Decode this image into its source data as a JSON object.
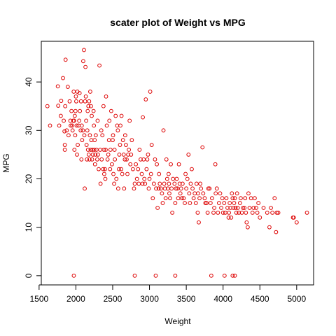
{
  "chart_data": {
    "type": "scatter",
    "title": "scater plot of Weight vs MPG",
    "xlabel": "Weight",
    "ylabel": "MPG",
    "xlim": [
      1530,
      5230
    ],
    "ylim": [
      -1.9,
      48.4
    ],
    "x_ticks": [
      1500,
      2000,
      2500,
      3000,
      3500,
      4000,
      4500,
      5000
    ],
    "y_ticks": [
      0,
      10,
      20,
      30,
      40
    ],
    "grid": false,
    "legend": "none",
    "point_color": "#dd0000",
    "series": [
      {
        "points": [
          [
            1613,
            35
          ],
          [
            1649,
            31
          ],
          [
            1755,
            39.1
          ],
          [
            1760,
            35.1
          ],
          [
            1773,
            31
          ],
          [
            1795,
            33
          ],
          [
            1800,
            36.1
          ],
          [
            1825,
            40.8
          ],
          [
            1835,
            32
          ],
          [
            1845,
            29.8
          ],
          [
            1850,
            26
          ],
          [
            1850,
            27
          ],
          [
            1855,
            35
          ],
          [
            1860,
            44.6
          ],
          [
            1875,
            30
          ],
          [
            1890,
            39
          ],
          [
            1900,
            29
          ],
          [
            1915,
            36
          ],
          [
            1925,
            32
          ],
          [
            1930,
            31
          ],
          [
            1940,
            34
          ],
          [
            1950,
            31
          ],
          [
            1955,
            30
          ],
          [
            1965,
            32
          ],
          [
            1970,
            38
          ],
          [
            1975,
            32
          ],
          [
            1980,
            26
          ],
          [
            1985,
            33
          ],
          [
            1990,
            29
          ],
          [
            1995,
            34
          ],
          [
            2000,
            37
          ],
          [
            2005,
            36
          ],
          [
            2010,
            31
          ],
          [
            2015,
            25
          ],
          [
            2020,
            38
          ],
          [
            2025,
            27
          ],
          [
            2035,
            31
          ],
          [
            2045,
            32
          ],
          [
            2050,
            37.7
          ],
          [
            2055,
            34
          ],
          [
            2065,
            30
          ],
          [
            2070,
            36
          ],
          [
            2075,
            24
          ],
          [
            2080,
            31
          ],
          [
            2085,
            28
          ],
          [
            2095,
            30
          ],
          [
            2100,
            44.3
          ],
          [
            2110,
            46.6
          ],
          [
            2115,
            29
          ],
          [
            2120,
            18
          ],
          [
            2125,
            36
          ],
          [
            2130,
            43.1
          ],
          [
            2135,
            37
          ],
          [
            2140,
            32
          ],
          [
            2145,
            27
          ],
          [
            2150,
            24
          ],
          [
            2155,
            30
          ],
          [
            2160,
            34
          ],
          [
            2165,
            26
          ],
          [
            2170,
            35
          ],
          [
            2175,
            25
          ],
          [
            2180,
            36
          ],
          [
            2185,
            24
          ],
          [
            2190,
            29
          ],
          [
            2195,
            38
          ],
          [
            2200,
            26
          ],
          [
            2205,
            35
          ],
          [
            2210,
            28
          ],
          [
            2215,
            33
          ],
          [
            2220,
            24
          ],
          [
            2225,
            26
          ],
          [
            2230,
            25
          ],
          [
            2240,
            34
          ],
          [
            2245,
            31
          ],
          [
            2250,
            26
          ],
          [
            2255,
            28
          ],
          [
            2260,
            23
          ],
          [
            2265,
            25
          ],
          [
            2270,
            29
          ],
          [
            2280,
            26
          ],
          [
            2290,
            24
          ],
          [
            2295,
            32
          ],
          [
            2300,
            25
          ],
          [
            2310,
            22
          ],
          [
            2320,
            43.4
          ],
          [
            2330,
            26
          ],
          [
            2335,
            19
          ],
          [
            2345,
            30
          ],
          [
            2350,
            24
          ],
          [
            2360,
            29
          ],
          [
            2370,
            22
          ],
          [
            2375,
            35
          ],
          [
            2380,
            26
          ],
          [
            2385,
            21
          ],
          [
            2395,
            22
          ],
          [
            2400,
            20
          ],
          [
            2405,
            26
          ],
          [
            2410,
            37
          ],
          [
            2420,
            31
          ],
          [
            2430,
            24
          ],
          [
            2440,
            25
          ],
          [
            2450,
            28
          ],
          [
            2455,
            32
          ],
          [
            2465,
            22
          ],
          [
            2470,
            26
          ],
          [
            2480,
            34
          ],
          [
            2490,
            23
          ],
          [
            2500,
            28
          ],
          [
            2505,
            29
          ],
          [
            2510,
            21
          ],
          [
            2520,
            19
          ],
          [
            2525,
            26
          ],
          [
            2530,
            24
          ],
          [
            2540,
            33
          ],
          [
            2550,
            20
          ],
          [
            2560,
            31
          ],
          [
            2570,
            30
          ],
          [
            2575,
            18
          ],
          [
            2585,
            22
          ],
          [
            2590,
            25
          ],
          [
            2600,
            27
          ],
          [
            2605,
            31
          ],
          [
            2615,
            22
          ],
          [
            2620,
            33
          ],
          [
            2630,
            21
          ],
          [
            2640,
            28
          ],
          [
            2650,
            25
          ],
          [
            2655,
            18
          ],
          [
            2665,
            24
          ],
          [
            2670,
            29
          ],
          [
            2680,
            27
          ],
          [
            2690,
            24
          ],
          [
            2700,
            21
          ],
          [
            2710,
            25
          ],
          [
            2720,
            26
          ],
          [
            2730,
            32
          ],
          [
            2740,
            23
          ],
          [
            2750,
            25
          ],
          [
            2760,
            28
          ],
          [
            2775,
            22
          ],
          [
            2790,
            18
          ],
          [
            2800,
            19
          ],
          [
            2815,
            23
          ],
          [
            2830,
            20
          ],
          [
            2845,
            22
          ],
          [
            2855,
            19
          ],
          [
            2865,
            26
          ],
          [
            2880,
            24
          ],
          [
            2895,
            21
          ],
          [
            2905,
            19
          ],
          [
            2910,
            32.7
          ],
          [
            2920,
            24
          ],
          [
            2930,
            20
          ],
          [
            2940,
            19
          ],
          [
            2950,
            36.4
          ],
          [
            2960,
            22
          ],
          [
            2970,
            24
          ],
          [
            2980,
            25
          ],
          [
            2990,
            18
          ],
          [
            3000,
            20
          ],
          [
            3010,
            38
          ],
          [
            3020,
            21
          ],
          [
            3030,
            27
          ],
          [
            3045,
            16
          ],
          [
            3060,
            19
          ],
          [
            3075,
            24
          ],
          [
            3090,
            18
          ],
          [
            3100,
            23
          ],
          [
            3110,
            14
          ],
          [
            3125,
            18
          ],
          [
            3130,
            21
          ],
          [
            3140,
            19
          ],
          [
            3155,
            18
          ],
          [
            3170,
            17
          ],
          [
            3180,
            15
          ],
          [
            3190,
            30
          ],
          [
            3200,
            19
          ],
          [
            3210,
            18
          ],
          [
            3220,
            16
          ],
          [
            3230,
            24
          ],
          [
            3240,
            20
          ],
          [
            3250,
            18
          ],
          [
            3260,
            21
          ],
          [
            3265,
            19
          ],
          [
            3270,
            17
          ],
          [
            3280,
            16
          ],
          [
            3290,
            23
          ],
          [
            3300,
            18
          ],
          [
            3310,
            13
          ],
          [
            3320,
            20
          ],
          [
            3340,
            19
          ],
          [
            3350,
            15
          ],
          [
            3360,
            18
          ],
          [
            3370,
            20
          ],
          [
            3380,
            18
          ],
          [
            3390,
            16
          ],
          [
            3400,
            23
          ],
          [
            3410,
            19
          ],
          [
            3420,
            17
          ],
          [
            3430,
            18
          ],
          [
            3440,
            16
          ],
          [
            3450,
            19
          ],
          [
            3465,
            16
          ],
          [
            3480,
            15
          ],
          [
            3490,
            21
          ],
          [
            3500,
            18
          ],
          [
            3515,
            20
          ],
          [
            3530,
            25
          ],
          [
            3540,
            17
          ],
          [
            3550,
            15
          ],
          [
            3560,
            19
          ],
          [
            3575,
            22
          ],
          [
            3585,
            18
          ],
          [
            3600,
            16
          ],
          [
            3615,
            17
          ],
          [
            3630,
            15
          ],
          [
            3640,
            19
          ],
          [
            3655,
            13
          ],
          [
            3660,
            17
          ],
          [
            3670,
            11
          ],
          [
            3680,
            16
          ],
          [
            3690,
            19
          ],
          [
            3700,
            18
          ],
          [
            3720,
            26.5
          ],
          [
            3730,
            17
          ],
          [
            3750,
            16
          ],
          [
            3760,
            15
          ],
          [
            3775,
            15
          ],
          [
            3790,
            13
          ],
          [
            3800,
            18
          ],
          [
            3815,
            18
          ],
          [
            3830,
            15
          ],
          [
            3850,
            16
          ],
          [
            3870,
            13
          ],
          [
            3880,
            14
          ],
          [
            3895,
            23
          ],
          [
            3900,
            17
          ],
          [
            3915,
            18
          ],
          [
            3930,
            13
          ],
          [
            3945,
            15
          ],
          [
            3960,
            17
          ],
          [
            3975,
            14
          ],
          [
            3990,
            16
          ],
          [
            4000,
            13
          ],
          [
            4015,
            15
          ],
          [
            4030,
            13
          ],
          [
            4045,
            16
          ],
          [
            4060,
            14
          ],
          [
            4075,
            12
          ],
          [
            4080,
            13
          ],
          [
            4090,
            15
          ],
          [
            4100,
            14
          ],
          [
            4110,
            12
          ],
          [
            4120,
            17
          ],
          [
            4130,
            16
          ],
          [
            4140,
            14
          ],
          [
            4150,
            15
          ],
          [
            4160,
            16
          ],
          [
            4170,
            14
          ],
          [
            4180,
            13
          ],
          [
            4190,
            17
          ],
          [
            4200,
            14
          ],
          [
            4215,
            13
          ],
          [
            4230,
            15
          ],
          [
            4240,
            16
          ],
          [
            4255,
            13
          ],
          [
            4270,
            14
          ],
          [
            4290,
            14
          ],
          [
            4300,
            16
          ],
          [
            4310,
            13
          ],
          [
            4320,
            11
          ],
          [
            4335,
            10
          ],
          [
            4345,
            17
          ],
          [
            4360,
            14
          ],
          [
            4380,
            16
          ],
          [
            4400,
            13
          ],
          [
            4415,
            14
          ],
          [
            4430,
            16
          ],
          [
            4450,
            14
          ],
          [
            4465,
            13
          ],
          [
            4480,
            15
          ],
          [
            4500,
            12
          ],
          [
            4550,
            14
          ],
          [
            4600,
            13
          ],
          [
            4630,
            10
          ],
          [
            4650,
            14
          ],
          [
            4670,
            13
          ],
          [
            4700,
            16
          ],
          [
            4720,
            9
          ],
          [
            4730,
            13
          ],
          [
            4750,
            13
          ],
          [
            4950,
            12
          ],
          [
            4960,
            12
          ],
          [
            5000,
            11
          ],
          [
            5140,
            13
          ],
          [
            1972,
            0
          ],
          [
            2800,
            0
          ],
          [
            3085,
            0
          ],
          [
            3350,
            0
          ],
          [
            3840,
            0
          ],
          [
            4020,
            0
          ],
          [
            4130,
            0
          ],
          [
            4160,
            0
          ]
        ]
      }
    ]
  }
}
